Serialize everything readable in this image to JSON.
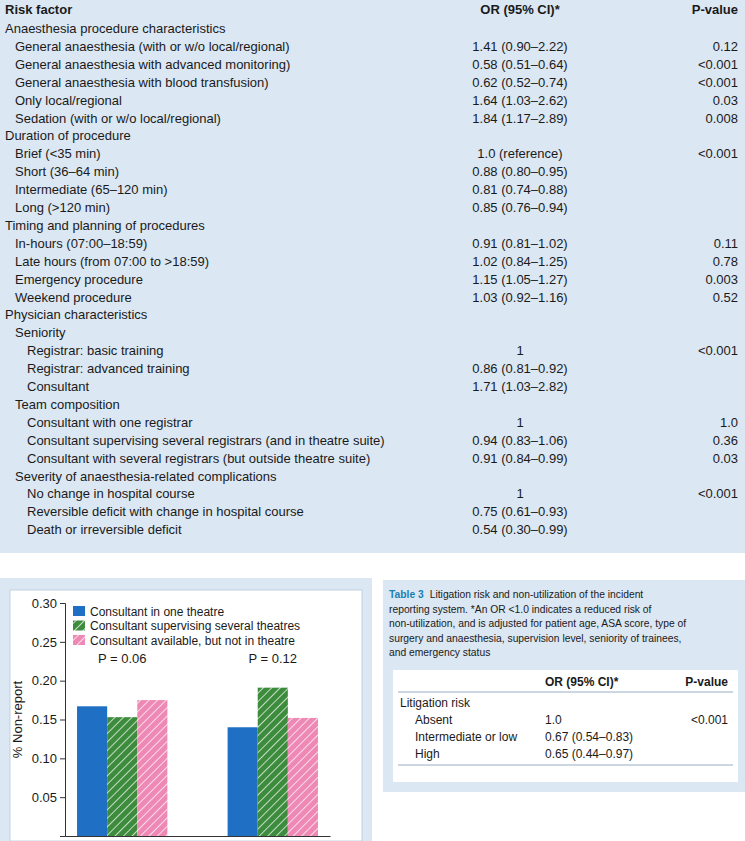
{
  "table": {
    "header": [
      "Risk factor",
      "OR (95% CI)*",
      "P-value"
    ],
    "sections": [
      {
        "title": "Anaesthesia procedure characteristics",
        "rows": [
          [
            "General anaesthesia (with or w/o local/regional)",
            "1.41 (0.90–2.22)",
            "0.12"
          ],
          [
            "General anaesthesia with advanced monitoring)",
            "0.58 (0.51–0.64)",
            "<0.001"
          ],
          [
            "General anaesthesia with blood transfusion)",
            "0.62 (0.52–0.74)",
            "<0.001"
          ],
          [
            "Only local/regional",
            "1.64 (1.03–2.62)",
            "0.03"
          ],
          [
            "Sedation (with or w/o local/regional)",
            "1.84 (1.17–2.89)",
            "0.008"
          ]
        ]
      },
      {
        "title": "Duration of procedure",
        "rows": [
          [
            "Brief (<35 min)",
            "1.0 (reference)",
            "<0.001"
          ],
          [
            "Short (36–64 min)",
            "0.88 (0.80–0.95)",
            null
          ],
          [
            "Intermediate (65–120 min)",
            "0.81 (0.74–0.88)",
            null
          ],
          [
            "Long (>120 min)",
            "0.85 (0.76–0.94)",
            null
          ]
        ]
      },
      {
        "title": "Timing and planning of procedures",
        "rows": [
          [
            "In-hours (07:00–18:59)",
            "0.91 (0.81–1.02)",
            "0.11"
          ],
          [
            "Late hours (from 07:00 to >18:59)",
            "1.02 (0.84–1.25)",
            "0.78"
          ],
          [
            "Emergency procedure",
            "1.15 (1.05–1.27)",
            "0.003"
          ],
          [
            "Weekend procedure",
            "1.03 (0.92–1.16)",
            "0.52"
          ]
        ]
      },
      {
        "title": "Physician characteristics",
        "subsections": [
          {
            "title": "Seniority",
            "rows": [
              [
                "Registrar: basic training",
                "1",
                "<0.001"
              ],
              [
                "Registrar: advanced training",
                "0.86 (0.81–0.92)",
                null
              ],
              [
                "Consultant",
                "1.71 (1.03–2.82)",
                null
              ]
            ]
          },
          {
            "title": "Team composition",
            "rows": [
              [
                "Consultant with one registrar",
                "1",
                "1.0"
              ],
              [
                "Consultant supervising several registrars (and in theatre suite)",
                "0.94 (0.83–1.06)",
                "0.36"
              ],
              [
                "Consultant with several registrars (but outside theatre suite)",
                "0.91 (0.84–0.99)",
                "0.03"
              ]
            ]
          },
          {
            "title": "Severity of anaesthesia-related complications",
            "rows": [
              [
                "No change in hospital course",
                "1",
                "<0.001"
              ],
              [
                "Reversible deficit with change in hospital course",
                "0.75 (0.61–0.93)",
                null
              ],
              [
                "Death or irreversible deficit",
                "0.54 (0.30–0.99)",
                null
              ]
            ]
          }
        ]
      }
    ]
  },
  "chart_data": {
    "type": "bar",
    "ylabel": "% Non-report",
    "categories": [
      null,
      null
    ],
    "series": [
      {
        "name": "Consultant in one theatre",
        "color": "#1f6fc4",
        "values": [
          0.167,
          0.14
        ]
      },
      {
        "name": "Consultant supervising several theatres",
        "color": "#3d8b3d",
        "values": [
          0.153,
          0.191
        ]
      },
      {
        "name": "Consultant available, but not in theatre",
        "color": "#ee88b4",
        "values": [
          0.175,
          0.152
        ]
      }
    ],
    "annotations": [
      "P = 0.06",
      "P = 0.12"
    ],
    "ylim": [
      0,
      0.3
    ],
    "yticks": [
      0.05,
      {
        "value": 0.1,
        "label": "0.10"
      },
      0.15,
      {
        "value": 0.2,
        "label": "0.20"
      },
      0.25,
      {
        "value": 0.3,
        "label": "0.30"
      }
    ],
    "legend": "upper left",
    "grid": false
  },
  "table3": {
    "label": "Table 3",
    "caption": [
      "Litigation risk and non-utilization of the incident",
      "reporting system. *An OR <1.0 indicates a reduced risk of",
      "non-utilization, and is adjusted for patient age, ASA score, type of",
      "surgery and anaesthesia, supervision level, seniority of trainees,",
      "and emergency status"
    ],
    "header": [
      "OR (95% CI)*",
      "P-value"
    ],
    "sections": [
      {
        "title": "Litigation risk",
        "rows": [
          [
            "Absent",
            "1.0",
            "<0.001"
          ],
          [
            "Intermediate or low",
            "0.67 (0.54–0.83)",
            null
          ],
          [
            "High",
            "0.65 (0.44–0.97)",
            null
          ]
        ]
      }
    ]
  }
}
